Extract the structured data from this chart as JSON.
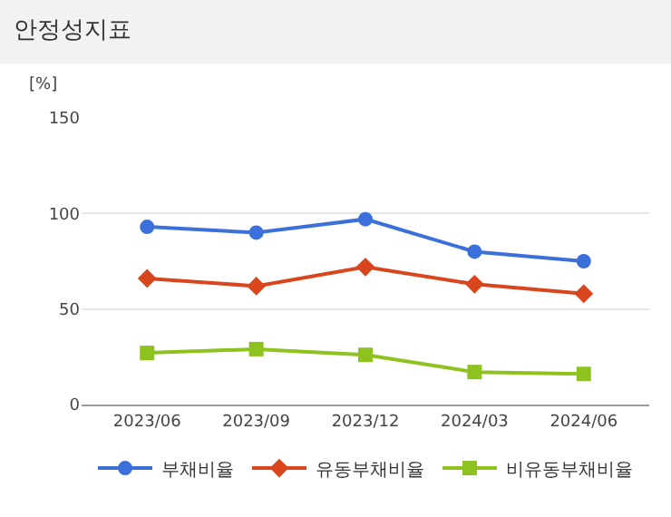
{
  "chart_data": {
    "type": "line",
    "title": "안정성지표",
    "ylabel": "[%]",
    "categories": [
      "2023/06",
      "2023/09",
      "2023/12",
      "2024/03",
      "2024/06"
    ],
    "series": [
      {
        "name": "부채비율",
        "color": "#3b6fd9",
        "marker": "circle",
        "values": [
          93,
          90,
          97,
          80,
          75
        ]
      },
      {
        "name": "유동부채비율",
        "color": "#d9461e",
        "marker": "diamond",
        "values": [
          66,
          62,
          72,
          63,
          58
        ]
      },
      {
        "name": "비유동부채비율",
        "color": "#8dc21f",
        "marker": "square",
        "values": [
          27,
          29,
          26,
          17,
          16
        ]
      }
    ],
    "ylim": [
      0,
      150
    ],
    "yticks": [
      0,
      50,
      100,
      150
    ],
    "grid": "y",
    "legend": "bottom"
  }
}
